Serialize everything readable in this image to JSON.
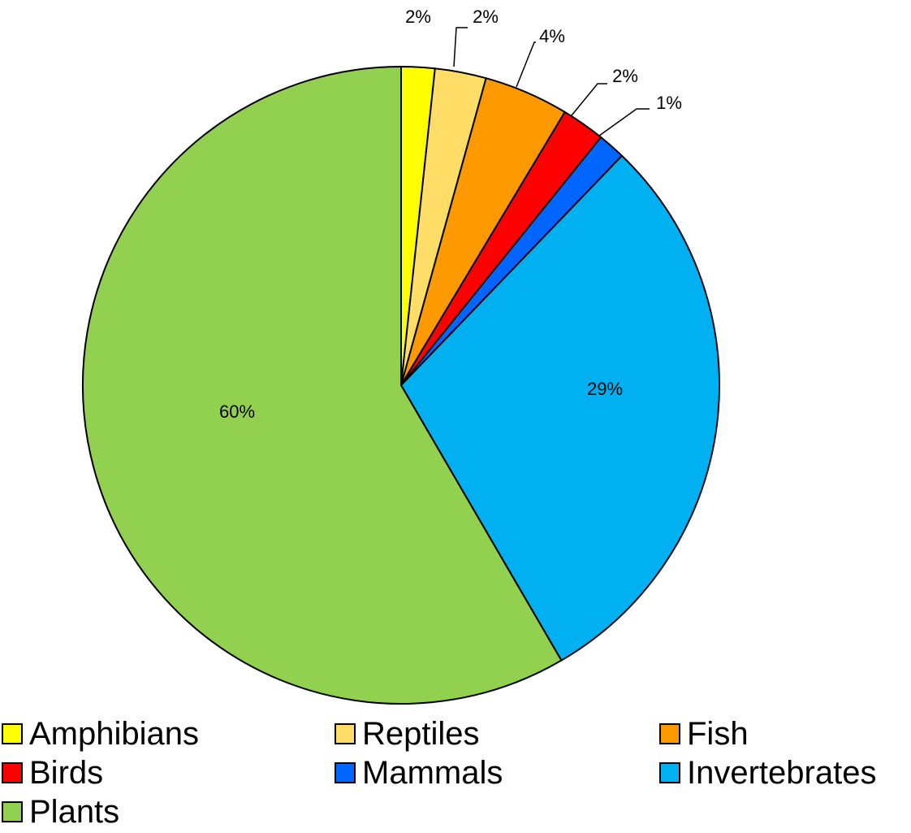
{
  "chart_data": {
    "type": "pie",
    "title": "",
    "slices": [
      {
        "name": "Amphibians",
        "value": 2,
        "label": "2%",
        "color": "#FFFF00"
      },
      {
        "name": "Reptiles",
        "value": 2,
        "label": "2%",
        "color": "#FFDD66"
      },
      {
        "name": "Fish",
        "value": 4,
        "label": "4%",
        "color": "#FF9900"
      },
      {
        "name": "Birds",
        "value": 2,
        "label": "2%",
        "color": "#FF0000"
      },
      {
        "name": "Mammals",
        "value": 1,
        "label": "1%",
        "color": "#0066FF"
      },
      {
        "name": "Invertebrates",
        "value": 29,
        "label": "29%",
        "color": "#00B0F0"
      },
      {
        "name": "Plants",
        "value": 60,
        "label": "60%",
        "color": "#92D050"
      }
    ],
    "legend_position": "bottom"
  }
}
